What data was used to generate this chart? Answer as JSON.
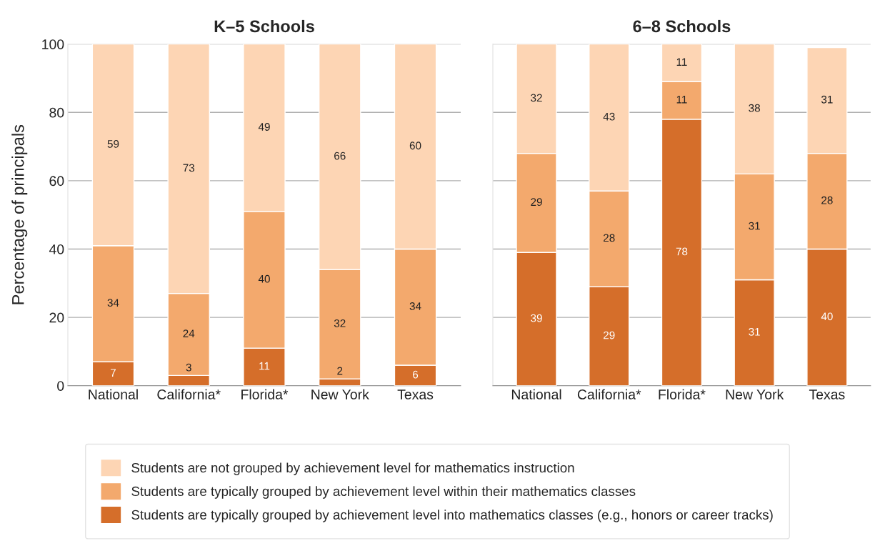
{
  "chart_data": [
    {
      "type": "bar",
      "title": "K–5 Schools",
      "ylabel": "Percentage of principals",
      "categories": [
        "National",
        "California*",
        "Florida*",
        "New York",
        "Texas"
      ],
      "stacked": true,
      "data_labels": true,
      "ylim": [
        0,
        100
      ],
      "yticks": [
        0,
        20,
        40,
        60,
        80,
        100
      ],
      "grid": "y",
      "legend": "bottom",
      "series": [
        {
          "name": "Students are typically grouped by achievement level into mathematics classes (e.g., honors or career tracks)",
          "color": "#d56e2a",
          "values": [
            7,
            3,
            11,
            2,
            6
          ]
        },
        {
          "name": "Students are typically grouped by achievement level within their mathematics classes",
          "color": "#f3a96d",
          "values": [
            34,
            24,
            40,
            32,
            34
          ]
        },
        {
          "name": "Students are not grouped by achievement level for mathematics instruction",
          "color": "#fdd5b4",
          "values": [
            59,
            73,
            49,
            66,
            60
          ]
        }
      ]
    },
    {
      "type": "bar",
      "title": "6–8 Schools",
      "categories": [
        "National",
        "California*",
        "Florida*",
        "New York",
        "Texas"
      ],
      "stacked": true,
      "data_labels": true,
      "ylim": [
        0,
        100
      ],
      "yticks": [
        0,
        20,
        40,
        60,
        80,
        100
      ],
      "grid": "y",
      "tick_labels": "x",
      "series": [
        {
          "color": "#d56e2a",
          "values": [
            39,
            29,
            78,
            31,
            40
          ]
        },
        {
          "color": "#f3a96d",
          "values": [
            29,
            28,
            11,
            31,
            28
          ]
        },
        {
          "color": "#fdd5b4",
          "values": [
            32,
            43,
            11,
            38,
            31
          ]
        }
      ]
    }
  ]
}
